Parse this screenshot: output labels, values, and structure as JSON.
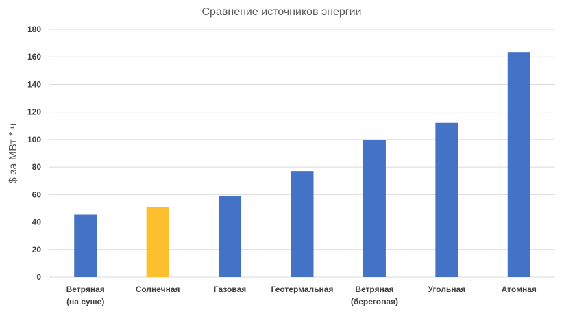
{
  "chart_data": {
    "type": "bar",
    "title": "Сравнение источников энергии",
    "xlabel": "",
    "ylabel": "$ за МВт * ч",
    "ylim": [
      0,
      180
    ],
    "yticks": [
      0,
      20,
      40,
      60,
      80,
      100,
      120,
      140,
      160,
      180
    ],
    "grid": true,
    "legend": "none",
    "categories": [
      [
        "Ветряная",
        "(на суше)"
      ],
      [
        "Солнечная"
      ],
      [
        "Газовая"
      ],
      [
        "Геотермальная"
      ],
      [
        "Ветряная",
        "(береговая)"
      ],
      [
        "Угольная"
      ],
      [
        "Атомная"
      ]
    ],
    "values": [
      45.5,
      51,
      59,
      77,
      99.5,
      112,
      163.5
    ],
    "bar_colors": [
      "#4472c4",
      "#fbbf2f",
      "#4472c4",
      "#4472c4",
      "#4472c4",
      "#4472c4",
      "#4472c4"
    ]
  }
}
